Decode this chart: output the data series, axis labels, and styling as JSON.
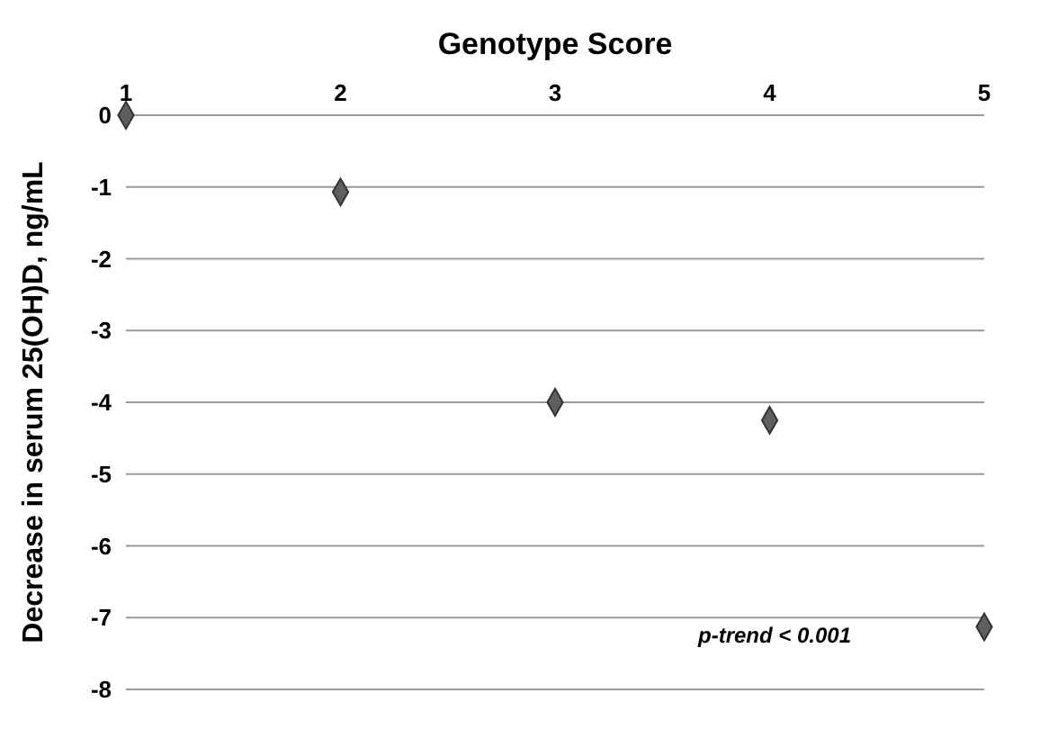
{
  "chart_data": {
    "type": "scatter",
    "xlabel": "Genotype Score",
    "ylabel": "Decrease in serum 25(OH)D, ng/mL",
    "x": [
      1,
      2,
      3,
      4,
      5
    ],
    "values": [
      0,
      -1.07,
      -4.0,
      -4.25,
      -7.13
    ],
    "color": "#5f5f5f",
    "marker": "diamond",
    "grid": "y",
    "xlim": [
      1,
      5
    ],
    "xticks": [
      1,
      2,
      3,
      4,
      5
    ],
    "ylim": [
      -8,
      0
    ],
    "yticks": [
      -8,
      -7,
      -6,
      -5,
      -4,
      -3,
      -2,
      -1,
      0
    ],
    "annotations": [
      "p-trend < 0.001"
    ]
  }
}
